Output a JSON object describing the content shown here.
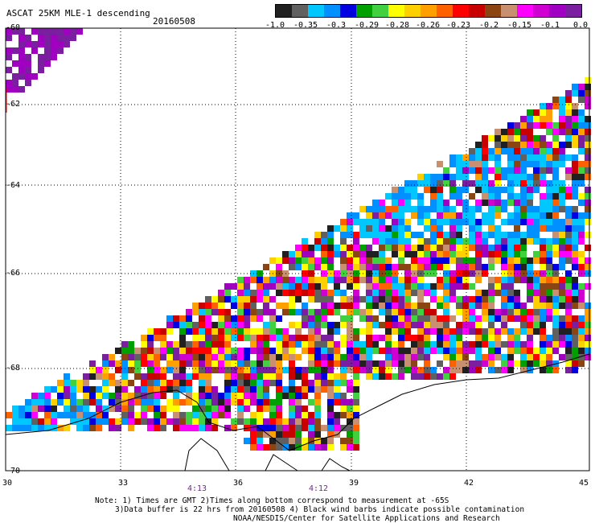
{
  "header": {
    "title": "ASCAT 25KM MLE-1 descending",
    "date": "20160508"
  },
  "colorbar": {
    "labels": [
      "-1.0",
      "-0.35",
      "-0.3",
      "-0.29",
      "-0.28",
      "-0.26",
      "-0.23",
      "-0.2",
      "-0.15",
      "-0.1",
      "0.0"
    ],
    "colors": [
      "#202020",
      "#606060",
      "#00c8ff",
      "#0090ff",
      "#0000e0",
      "#00a000",
      "#40d040",
      "#ffff00",
      "#ffd000",
      "#ffa000",
      "#ff6000",
      "#ff0000",
      "#c80000",
      "#8b4513",
      "#c89070",
      "#ff00ff",
      "#d000d0",
      "#a000c0",
      "#7a1fa0"
    ]
  },
  "map": {
    "lat_labels": [
      "-60",
      "-62",
      "-64",
      "-66",
      "-68",
      "-70"
    ],
    "lon_labels": [
      "30",
      "33",
      "36",
      "39",
      "42",
      "45"
    ],
    "time_labels": [
      "4:13",
      "4:12"
    ],
    "time_color": "#7a1fa0",
    "coast_color": "#000000"
  },
  "footer": {
    "note_line1": "Note: 1) Times are GMT 2)Times along bottom correspond to measurement at -65S",
    "note_line2": "3)Data buffer is 22 hrs from 20160508 4) Black wind barbs indicate possible contamination",
    "note_line3": "NOAA/NESDIS/Center for Satellite Applications and Research"
  }
}
